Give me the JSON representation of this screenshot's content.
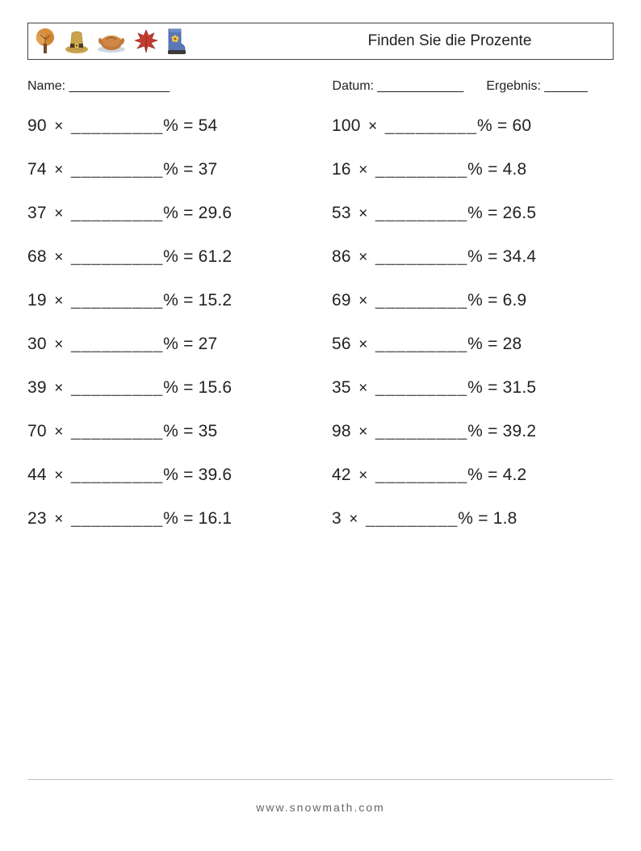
{
  "header": {
    "title": "Finden Sie die Prozente"
  },
  "meta": {
    "name_label": "Name:",
    "name_blank": "______________",
    "date_label": "Datum:",
    "date_blank": "____________",
    "result_label": "Ergebnis:",
    "result_blank": "______"
  },
  "problem_style": {
    "blank": "_________",
    "operator": "×",
    "percent_equals": "% ="
  },
  "problems": {
    "left": [
      {
        "a": "90",
        "r": "54"
      },
      {
        "a": "74",
        "r": "37"
      },
      {
        "a": "37",
        "r": "29.6"
      },
      {
        "a": "68",
        "r": "61.2"
      },
      {
        "a": "19",
        "r": "15.2"
      },
      {
        "a": "30",
        "r": "27"
      },
      {
        "a": "39",
        "r": "15.6"
      },
      {
        "a": "70",
        "r": "35"
      },
      {
        "a": "44",
        "r": "39.6"
      },
      {
        "a": "23",
        "r": "16.1"
      }
    ],
    "right": [
      {
        "a": "100",
        "r": "60"
      },
      {
        "a": "16",
        "r": "4.8"
      },
      {
        "a": "53",
        "r": "26.5"
      },
      {
        "a": "86",
        "r": "34.4"
      },
      {
        "a": "69",
        "r": "6.9"
      },
      {
        "a": "56",
        "r": "28"
      },
      {
        "a": "35",
        "r": "31.5"
      },
      {
        "a": "98",
        "r": "39.2"
      },
      {
        "a": "42",
        "r": "4.2"
      },
      {
        "a": "3",
        "r": "1.8"
      }
    ]
  },
  "footer": {
    "text": "www.snowmath.com"
  },
  "colors": {
    "text": "#222222",
    "border": "#444444",
    "footer_text": "#666666",
    "divider": "#bfbfbf",
    "tree_canopy": "#d98f3e",
    "tree_trunk": "#7a4a2b",
    "hat_body": "#c9a34a",
    "hat_band": "#4a3a28",
    "hat_buckle": "#e8c457",
    "turkey_body": "#c07a3a",
    "turkey_plate": "#cfd6dd",
    "leaf": "#c23b2e",
    "boot_body": "#5a77b8",
    "boot_sole": "#3b3b3b",
    "boot_flower": "#efb93a"
  }
}
